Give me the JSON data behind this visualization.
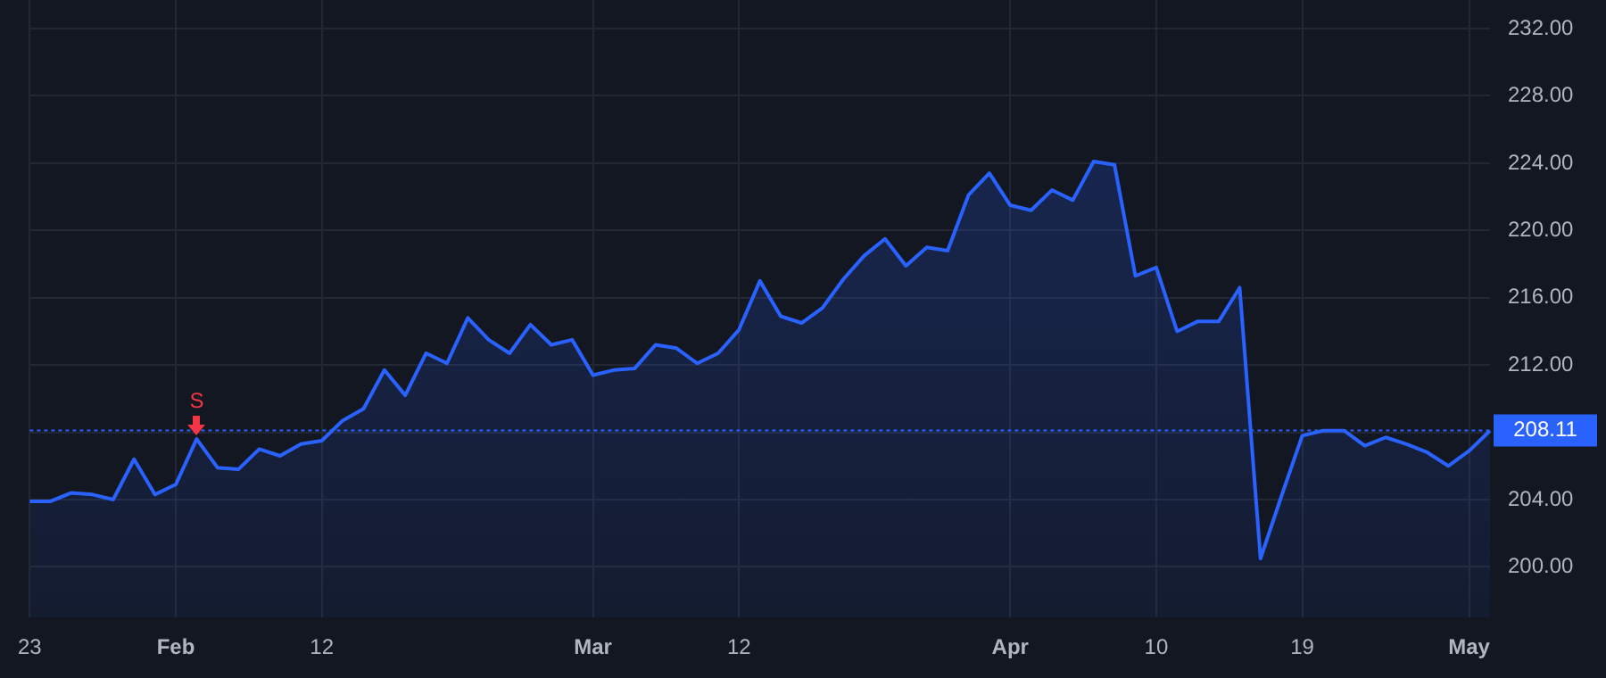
{
  "chart_data": {
    "type": "area",
    "categories": [
      "23",
      null,
      null,
      null,
      null,
      null,
      null,
      "Feb",
      null,
      null,
      null,
      null,
      null,
      null,
      "12",
      null,
      null,
      null,
      null,
      null,
      null,
      null,
      null,
      null,
      null,
      null,
      null,
      "Mar",
      null,
      null,
      null,
      null,
      null,
      null,
      "12",
      null,
      null,
      null,
      null,
      null,
      null,
      null,
      null,
      null,
      null,
      null,
      null,
      "Apr",
      null,
      null,
      null,
      null,
      null,
      null,
      "10",
      null,
      null,
      null,
      null,
      null,
      null,
      "19",
      null,
      null,
      null,
      null,
      null,
      null,
      null,
      "May",
      null
    ],
    "series": [
      {
        "color": "#2962ff",
        "values": [
          203.9,
          203.9,
          204.4,
          204.3,
          204.0,
          206.4,
          204.3,
          204.9,
          207.6,
          205.9,
          205.8,
          207.0,
          206.6,
          207.3,
          207.5,
          208.7,
          209.4,
          211.7,
          210.2,
          212.7,
          212.1,
          214.8,
          213.5,
          212.7,
          214.4,
          213.2,
          213.5,
          211.4,
          211.7,
          211.8,
          213.2,
          213.0,
          212.1,
          212.7,
          214.1,
          217.0,
          214.9,
          214.5,
          215.4,
          217.1,
          218.5,
          219.5,
          217.9,
          219.0,
          218.8,
          222.1,
          223.4,
          221.5,
          221.2,
          222.4,
          221.8,
          224.1,
          223.9,
          217.3,
          217.8,
          214.0,
          214.6,
          214.6,
          216.6,
          200.5,
          204.2,
          207.8,
          208.1,
          208.1,
          207.2,
          207.7,
          207.3,
          206.8,
          206.0,
          206.9,
          208.1
        ]
      }
    ],
    "ylim": [
      197,
      233.7
    ],
    "yticks": [
      {
        "value": 200,
        "label": "200.00"
      },
      {
        "value": 204,
        "label": "204.00"
      },
      {
        "value": 208,
        "label": null
      },
      {
        "value": 212,
        "label": "212.00"
      },
      {
        "value": 216,
        "label": "216.00"
      },
      {
        "value": 220,
        "label": "220.00"
      },
      {
        "value": 224,
        "label": "224.00"
      },
      {
        "value": 228,
        "label": "228.00"
      },
      {
        "value": 232,
        "label": "232.00"
      }
    ],
    "ref_lines": [
      {
        "axis": "y",
        "value": 208.11,
        "label": "208.11",
        "color": "#2962ff",
        "line_style": "dotted"
      }
    ],
    "annotations": [
      {
        "text": "S",
        "y": 207.6
      }
    ],
    "grid": true,
    "legend": false,
    "marker": "none",
    "line_style": "solid"
  }
}
